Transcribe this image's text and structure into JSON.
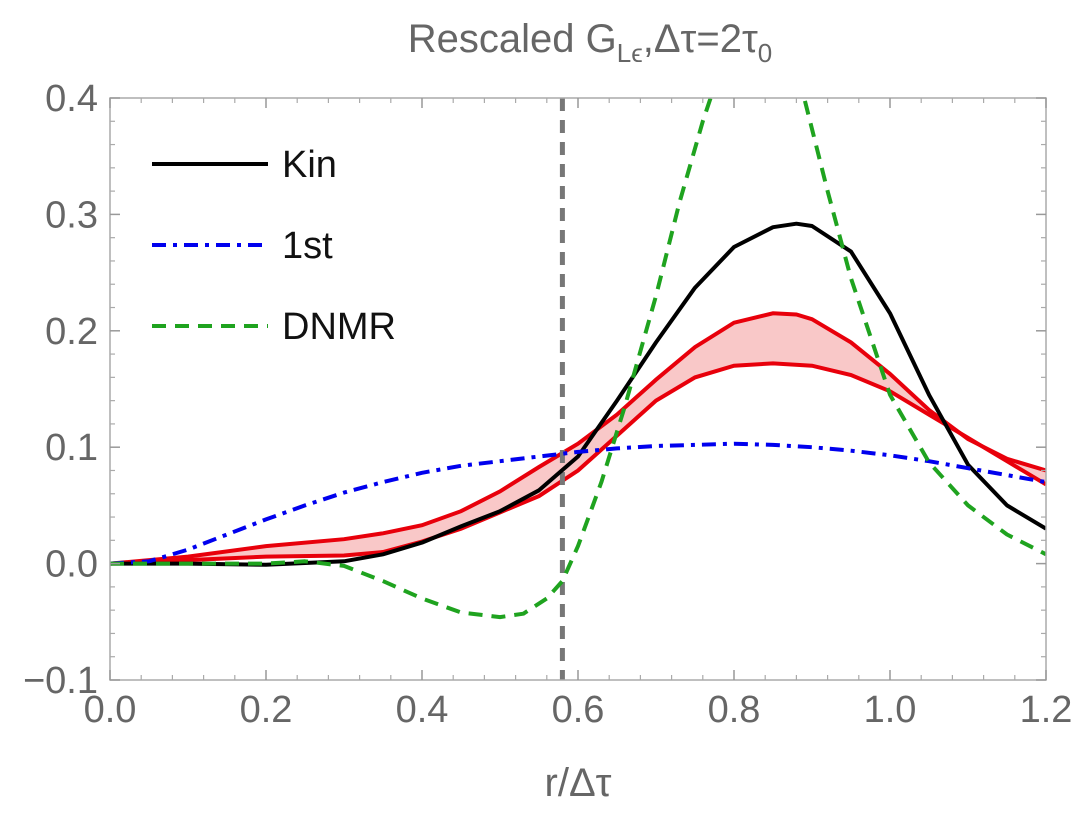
{
  "chart_data": {
    "type": "line",
    "title": "Rescaled G_{Lϵ},Δτ=2τ_0",
    "title_parts": {
      "main": "Rescaled G",
      "subscript": "Lϵ",
      "middle": ",Δτ=2τ",
      "end_subscript": "0"
    },
    "xlabel": "r/Δτ",
    "ylabel": "",
    "xlim": [
      0.0,
      1.2
    ],
    "ylim": [
      -0.1,
      0.4
    ],
    "x_ticks": [
      0.0,
      0.2,
      0.4,
      0.6,
      0.8,
      1.0,
      1.2
    ],
    "x_tick_labels": [
      "0.0",
      "0.2",
      "0.4",
      "0.6",
      "0.8",
      "1.0",
      "1.2"
    ],
    "y_ticks": [
      -0.1,
      0.0,
      0.1,
      0.2,
      0.3,
      0.4
    ],
    "y_tick_labels": [
      "−0.1",
      "0.0",
      "0.1",
      "0.2",
      "0.3",
      "0.4"
    ],
    "grid": false,
    "legend_position": "top-left",
    "vertical_reference_line": {
      "x": 0.58,
      "color": "#777777",
      "style": "dashed"
    },
    "series": [
      {
        "name": "Kin",
        "color": "#000000",
        "style": "solid",
        "points": [
          [
            0.0,
            0.0
          ],
          [
            0.1,
            0.0
          ],
          [
            0.2,
            -0.001
          ],
          [
            0.3,
            0.002
          ],
          [
            0.35,
            0.008
          ],
          [
            0.4,
            0.018
          ],
          [
            0.45,
            0.032
          ],
          [
            0.5,
            0.045
          ],
          [
            0.55,
            0.063
          ],
          [
            0.6,
            0.092
          ],
          [
            0.65,
            0.14
          ],
          [
            0.7,
            0.19
          ],
          [
            0.75,
            0.237
          ],
          [
            0.8,
            0.272
          ],
          [
            0.85,
            0.289
          ],
          [
            0.88,
            0.292
          ],
          [
            0.9,
            0.29
          ],
          [
            0.95,
            0.268
          ],
          [
            1.0,
            0.215
          ],
          [
            1.05,
            0.145
          ],
          [
            1.1,
            0.085
          ],
          [
            1.15,
            0.05
          ],
          [
            1.2,
            0.03
          ]
        ]
      },
      {
        "name": "1st",
        "color": "#0000ee",
        "style": "dashdot",
        "points": [
          [
            0.0,
            0.0
          ],
          [
            0.05,
            0.002
          ],
          [
            0.1,
            0.012
          ],
          [
            0.15,
            0.025
          ],
          [
            0.2,
            0.038
          ],
          [
            0.25,
            0.05
          ],
          [
            0.3,
            0.061
          ],
          [
            0.35,
            0.07
          ],
          [
            0.4,
            0.078
          ],
          [
            0.45,
            0.084
          ],
          [
            0.5,
            0.088
          ],
          [
            0.55,
            0.092
          ],
          [
            0.6,
            0.096
          ],
          [
            0.65,
            0.099
          ],
          [
            0.7,
            0.101
          ],
          [
            0.75,
            0.102
          ],
          [
            0.8,
            0.103
          ],
          [
            0.85,
            0.102
          ],
          [
            0.9,
            0.1
          ],
          [
            0.95,
            0.097
          ],
          [
            1.0,
            0.093
          ],
          [
            1.05,
            0.088
          ],
          [
            1.1,
            0.082
          ],
          [
            1.15,
            0.076
          ],
          [
            1.2,
            0.07
          ]
        ]
      },
      {
        "name": "DNMR",
        "color": "#1fa31f",
        "style": "dashed",
        "points": [
          [
            0.0,
            0.0
          ],
          [
            0.1,
            0.0
          ],
          [
            0.2,
            0.0
          ],
          [
            0.25,
            0.002
          ],
          [
            0.3,
            -0.002
          ],
          [
            0.35,
            -0.015
          ],
          [
            0.4,
            -0.03
          ],
          [
            0.45,
            -0.042
          ],
          [
            0.5,
            -0.046
          ],
          [
            0.53,
            -0.043
          ],
          [
            0.56,
            -0.03
          ],
          [
            0.58,
            -0.015
          ],
          [
            0.6,
            0.015
          ],
          [
            0.63,
            0.07
          ],
          [
            0.66,
            0.135
          ],
          [
            0.7,
            0.23
          ],
          [
            0.73,
            0.31
          ],
          [
            0.76,
            0.38
          ],
          [
            0.78,
            0.42
          ],
          [
            0.82,
            0.47
          ],
          [
            0.86,
            0.44
          ],
          [
            0.89,
            0.4
          ],
          [
            0.92,
            0.32
          ],
          [
            0.95,
            0.245
          ],
          [
            1.0,
            0.145
          ],
          [
            1.05,
            0.087
          ],
          [
            1.1,
            0.05
          ],
          [
            1.15,
            0.025
          ],
          [
            1.2,
            0.008
          ]
        ]
      }
    ],
    "band": {
      "color": "#e8000b",
      "fill": "#f9c8c8",
      "upper": [
        [
          0.0,
          0.0
        ],
        [
          0.1,
          0.006
        ],
        [
          0.2,
          0.015
        ],
        [
          0.3,
          0.021
        ],
        [
          0.35,
          0.026
        ],
        [
          0.4,
          0.033
        ],
        [
          0.45,
          0.045
        ],
        [
          0.5,
          0.062
        ],
        [
          0.55,
          0.083
        ],
        [
          0.6,
          0.103
        ],
        [
          0.65,
          0.128
        ],
        [
          0.7,
          0.158
        ],
        [
          0.75,
          0.186
        ],
        [
          0.8,
          0.207
        ],
        [
          0.85,
          0.215
        ],
        [
          0.88,
          0.214
        ],
        [
          0.9,
          0.21
        ],
        [
          0.95,
          0.19
        ],
        [
          1.0,
          0.163
        ],
        [
          1.05,
          0.132
        ],
        [
          1.1,
          0.107
        ],
        [
          1.15,
          0.09
        ],
        [
          1.2,
          0.08
        ]
      ],
      "lower": [
        [
          0.0,
          0.0
        ],
        [
          0.1,
          0.003
        ],
        [
          0.2,
          0.006
        ],
        [
          0.3,
          0.007
        ],
        [
          0.35,
          0.01
        ],
        [
          0.4,
          0.019
        ],
        [
          0.45,
          0.03
        ],
        [
          0.5,
          0.044
        ],
        [
          0.55,
          0.058
        ],
        [
          0.6,
          0.08
        ],
        [
          0.65,
          0.11
        ],
        [
          0.7,
          0.14
        ],
        [
          0.75,
          0.16
        ],
        [
          0.8,
          0.17
        ],
        [
          0.85,
          0.172
        ],
        [
          0.9,
          0.17
        ],
        [
          0.95,
          0.162
        ],
        [
          1.0,
          0.148
        ],
        [
          1.05,
          0.128
        ],
        [
          1.1,
          0.108
        ],
        [
          1.15,
          0.088
        ],
        [
          1.2,
          0.068
        ]
      ]
    }
  }
}
